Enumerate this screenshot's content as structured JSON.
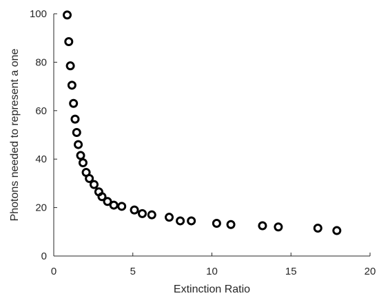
{
  "chart_data": {
    "type": "scatter",
    "xlabel": "Extinction Ratio",
    "ylabel": "Photons needed to represent a one",
    "xlim": [
      0,
      20
    ],
    "ylim": [
      0,
      100
    ],
    "xticks": [
      0,
      5,
      10,
      15,
      20
    ],
    "yticks": [
      0,
      20,
      40,
      60,
      80,
      100
    ],
    "grid": false,
    "marker": "circle-open",
    "marker_color": "#000000",
    "series": [
      {
        "x": [
          0.85,
          0.95,
          1.05,
          1.15,
          1.25,
          1.35,
          1.45,
          1.55,
          1.7,
          1.85,
          2.05,
          2.25,
          2.55,
          2.85,
          3.05,
          3.4,
          3.8,
          4.3,
          5.1,
          5.6,
          6.2,
          7.3,
          8.0,
          8.7,
          10.3,
          11.2,
          13.2,
          14.2,
          16.7,
          17.9
        ],
        "y": [
          99.5,
          88.5,
          78.5,
          70.5,
          63,
          56.5,
          51,
          46,
          41.5,
          38.5,
          34.5,
          32,
          29.5,
          26.5,
          24.5,
          22.5,
          21,
          20.5,
          19,
          17.5,
          17,
          16,
          14.5,
          14.5,
          13.5,
          13,
          12.5,
          12,
          11.5,
          10.5
        ]
      }
    ]
  }
}
